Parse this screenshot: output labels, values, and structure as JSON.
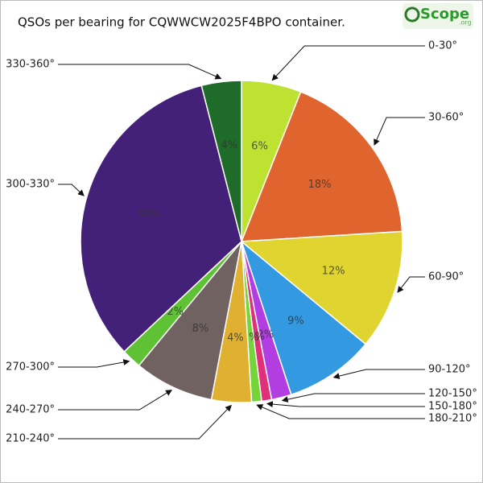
{
  "chart_data": {
    "type": "pie",
    "title": "QSOs per bearing for CQWWCW2025F4BPO container.",
    "logo": {
      "text": "Scope",
      "suffix": ".org"
    },
    "categories": [
      "0-30°",
      "30-60°",
      "60-90°",
      "90-120°",
      "120-150°",
      "150-180°",
      "180-210°",
      "210-240°",
      "240-270°",
      "270-300°",
      "300-330°",
      "330-360°"
    ],
    "values": [
      6,
      18,
      12,
      9,
      2,
      1,
      1,
      4,
      8,
      2,
      33,
      4
    ],
    "value_labels": [
      "6%",
      "18%",
      "12%",
      "9%",
      "2%",
      "1%",
      "1%",
      "4%",
      "8%",
      "2%",
      "33%",
      "4%"
    ],
    "colors": [
      "#bde232",
      "#e0642e",
      "#e0d430",
      "#3399e0",
      "#b23de0",
      "#e0307a",
      "#74d43a",
      "#e0b030",
      "#706260",
      "#5ec234",
      "#442178",
      "#1e6b2a"
    ]
  }
}
